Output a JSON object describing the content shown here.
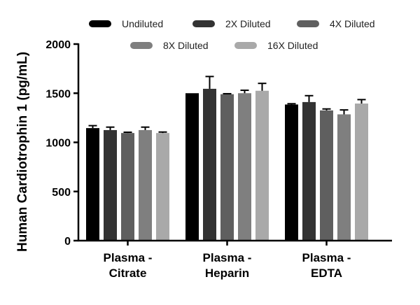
{
  "chart_data": {
    "type": "bar",
    "title": "",
    "xlabel": "",
    "ylabel": "Human Cardiotrophin 1 (pg/mL)",
    "ylim": [
      0,
      2000
    ],
    "yticks": [
      0,
      500,
      1000,
      1500,
      2000
    ],
    "grid": false,
    "legend_position": "top",
    "categories": [
      [
        "Plasma -",
        "Citrate"
      ],
      [
        "Plasma -",
        "Heparin"
      ],
      [
        "Plasma -",
        "EDTA"
      ]
    ],
    "series": [
      {
        "name": "Undiluted",
        "color": "#000000",
        "values": [
          1145,
          1500,
          1385
        ],
        "errors": [
          25,
          0,
          8
        ]
      },
      {
        "name": "2X Diluted",
        "color": "#333333",
        "values": [
          1125,
          1545,
          1410
        ],
        "errors": [
          30,
          125,
          65
        ]
      },
      {
        "name": "4X Diluted",
        "color": "#5f5f5f",
        "values": [
          1095,
          1490,
          1325
        ],
        "errors": [
          8,
          5,
          15
        ]
      },
      {
        "name": "8X Diluted",
        "color": "#7f7f7f",
        "values": [
          1125,
          1500,
          1285
        ],
        "errors": [
          30,
          30,
          45
        ]
      },
      {
        "name": "16X Diluted",
        "color": "#a9a9a9",
        "values": [
          1095,
          1525,
          1395
        ],
        "errors": [
          10,
          75,
          40
        ]
      }
    ]
  }
}
